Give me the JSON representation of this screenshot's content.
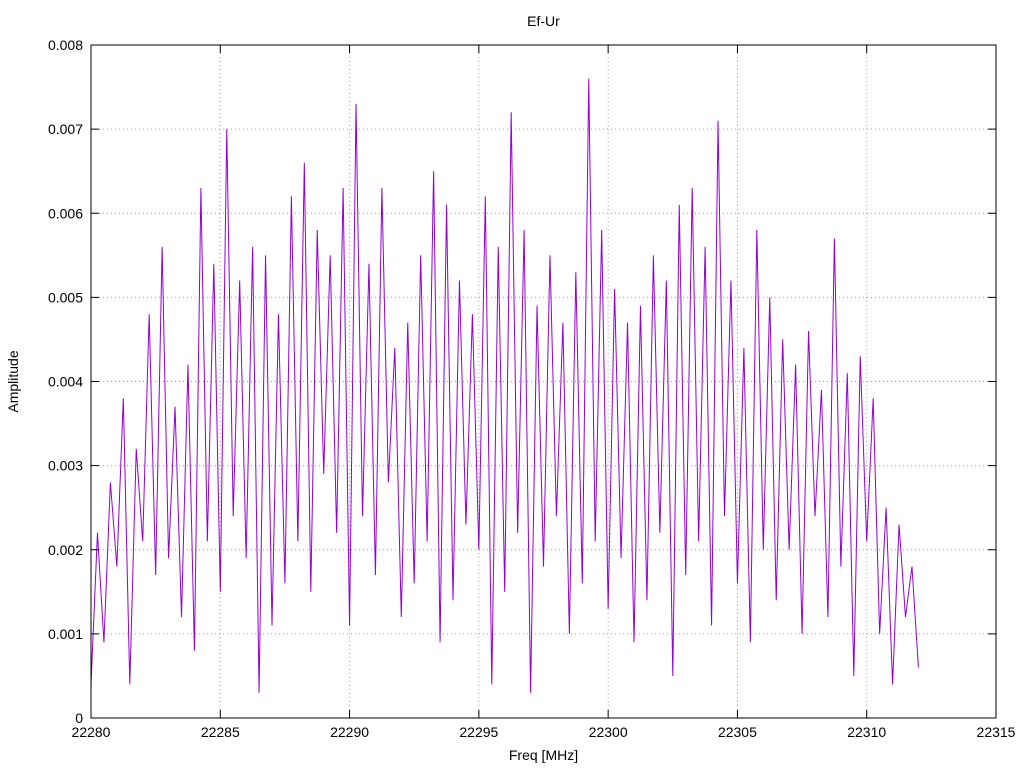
{
  "chart_data": {
    "type": "line",
    "title": "Ef-Ur",
    "xlabel": "Freq [MHz]",
    "ylabel": "Amplitude",
    "xlim": [
      22280,
      22315
    ],
    "ylim": [
      0,
      0.008
    ],
    "x_ticks": [
      22280,
      22285,
      22290,
      22295,
      22300,
      22305,
      22310,
      22315
    ],
    "x_tick_labels": [
      "22280",
      "22285",
      "22290",
      "22295",
      "22300",
      "22305",
      "22310",
      "22315"
    ],
    "y_ticks": [
      0,
      0.001,
      0.002,
      0.003,
      0.004,
      0.005,
      0.006,
      0.007,
      0.008
    ],
    "y_tick_labels": [
      "0",
      "0.001",
      "0.002",
      "0.003",
      "0.004",
      "0.005",
      "0.006",
      "0.007",
      "0.008"
    ],
    "grid": true,
    "line_color": "#9400d3",
    "series": [
      {
        "name": "",
        "x": [
          22280,
          22280.25,
          22280.5,
          22280.75,
          22281,
          22281.25,
          22281.5,
          22281.75,
          22282,
          22282.25,
          22282.5,
          22282.75,
          22283,
          22283.25,
          22283.5,
          22283.75,
          22284,
          22284.25,
          22284.5,
          22284.75,
          22285,
          22285.25,
          22285.5,
          22285.75,
          22286,
          22286.25,
          22286.5,
          22286.75,
          22287,
          22287.25,
          22287.5,
          22287.75,
          22288,
          22288.25,
          22288.5,
          22288.75,
          22289,
          22289.25,
          22289.5,
          22289.75,
          22290,
          22290.25,
          22290.5,
          22290.75,
          22291,
          22291.25,
          22291.5,
          22291.75,
          22292,
          22292.25,
          22292.5,
          22292.75,
          22293,
          22293.25,
          22293.5,
          22293.75,
          22294,
          22294.25,
          22294.5,
          22294.75,
          22295,
          22295.25,
          22295.5,
          22295.75,
          22296,
          22296.25,
          22296.5,
          22296.75,
          22297,
          22297.25,
          22297.5,
          22297.75,
          22298,
          22298.25,
          22298.5,
          22298.75,
          22299,
          22299.25,
          22299.5,
          22299.75,
          22300,
          22300.25,
          22300.5,
          22300.75,
          22301,
          22301.25,
          22301.5,
          22301.75,
          22302,
          22302.25,
          22302.5,
          22302.75,
          22303,
          22303.25,
          22303.5,
          22303.75,
          22304,
          22304.25,
          22304.5,
          22304.75,
          22305,
          22305.25,
          22305.5,
          22305.75,
          22306,
          22306.25,
          22306.5,
          22306.75,
          22307,
          22307.25,
          22307.5,
          22307.75,
          22308,
          22308.25,
          22308.5,
          22308.75,
          22309,
          22309.25,
          22309.5,
          22309.75,
          22310,
          22310.25,
          22310.5,
          22310.75,
          22311,
          22311.25,
          22311.5,
          22311.75,
          22312
        ],
        "y": [
          0.0004,
          0.0022,
          0.0009,
          0.0028,
          0.0018,
          0.0038,
          0.0004,
          0.0032,
          0.0021,
          0.0048,
          0.0017,
          0.0056,
          0.0019,
          0.0037,
          0.0012,
          0.0042,
          0.0008,
          0.0063,
          0.0021,
          0.0054,
          0.0015,
          0.007,
          0.0024,
          0.0052,
          0.0019,
          0.0056,
          0.0003,
          0.0055,
          0.0011,
          0.0048,
          0.0016,
          0.0062,
          0.0021,
          0.0066,
          0.0015,
          0.0058,
          0.0029,
          0.0055,
          0.0022,
          0.0063,
          0.0011,
          0.0073,
          0.0024,
          0.0054,
          0.0017,
          0.0063,
          0.0028,
          0.0044,
          0.0012,
          0.0047,
          0.0016,
          0.0055,
          0.0021,
          0.0065,
          0.0009,
          0.0061,
          0.0014,
          0.0052,
          0.0023,
          0.0048,
          0.002,
          0.0062,
          0.0004,
          0.0056,
          0.0015,
          0.0072,
          0.0022,
          0.0058,
          0.0003,
          0.0049,
          0.0018,
          0.0055,
          0.0024,
          0.0047,
          0.001,
          0.0053,
          0.0016,
          0.0076,
          0.0021,
          0.0058,
          0.0013,
          0.0051,
          0.0019,
          0.0047,
          0.0009,
          0.0049,
          0.0014,
          0.0055,
          0.0022,
          0.0052,
          0.0005,
          0.0061,
          0.0017,
          0.0063,
          0.0021,
          0.0056,
          0.0011,
          0.0071,
          0.0024,
          0.0052,
          0.0016,
          0.0044,
          0.0009,
          0.0058,
          0.002,
          0.005,
          0.0014,
          0.0045,
          0.002,
          0.0042,
          0.001,
          0.0046,
          0.0024,
          0.0039,
          0.0012,
          0.0057,
          0.0018,
          0.0041,
          0.0005,
          0.0043,
          0.0021,
          0.0038,
          0.001,
          0.0025,
          0.0004,
          0.0023,
          0.0012,
          0.0018,
          0.0006
        ]
      }
    ]
  }
}
